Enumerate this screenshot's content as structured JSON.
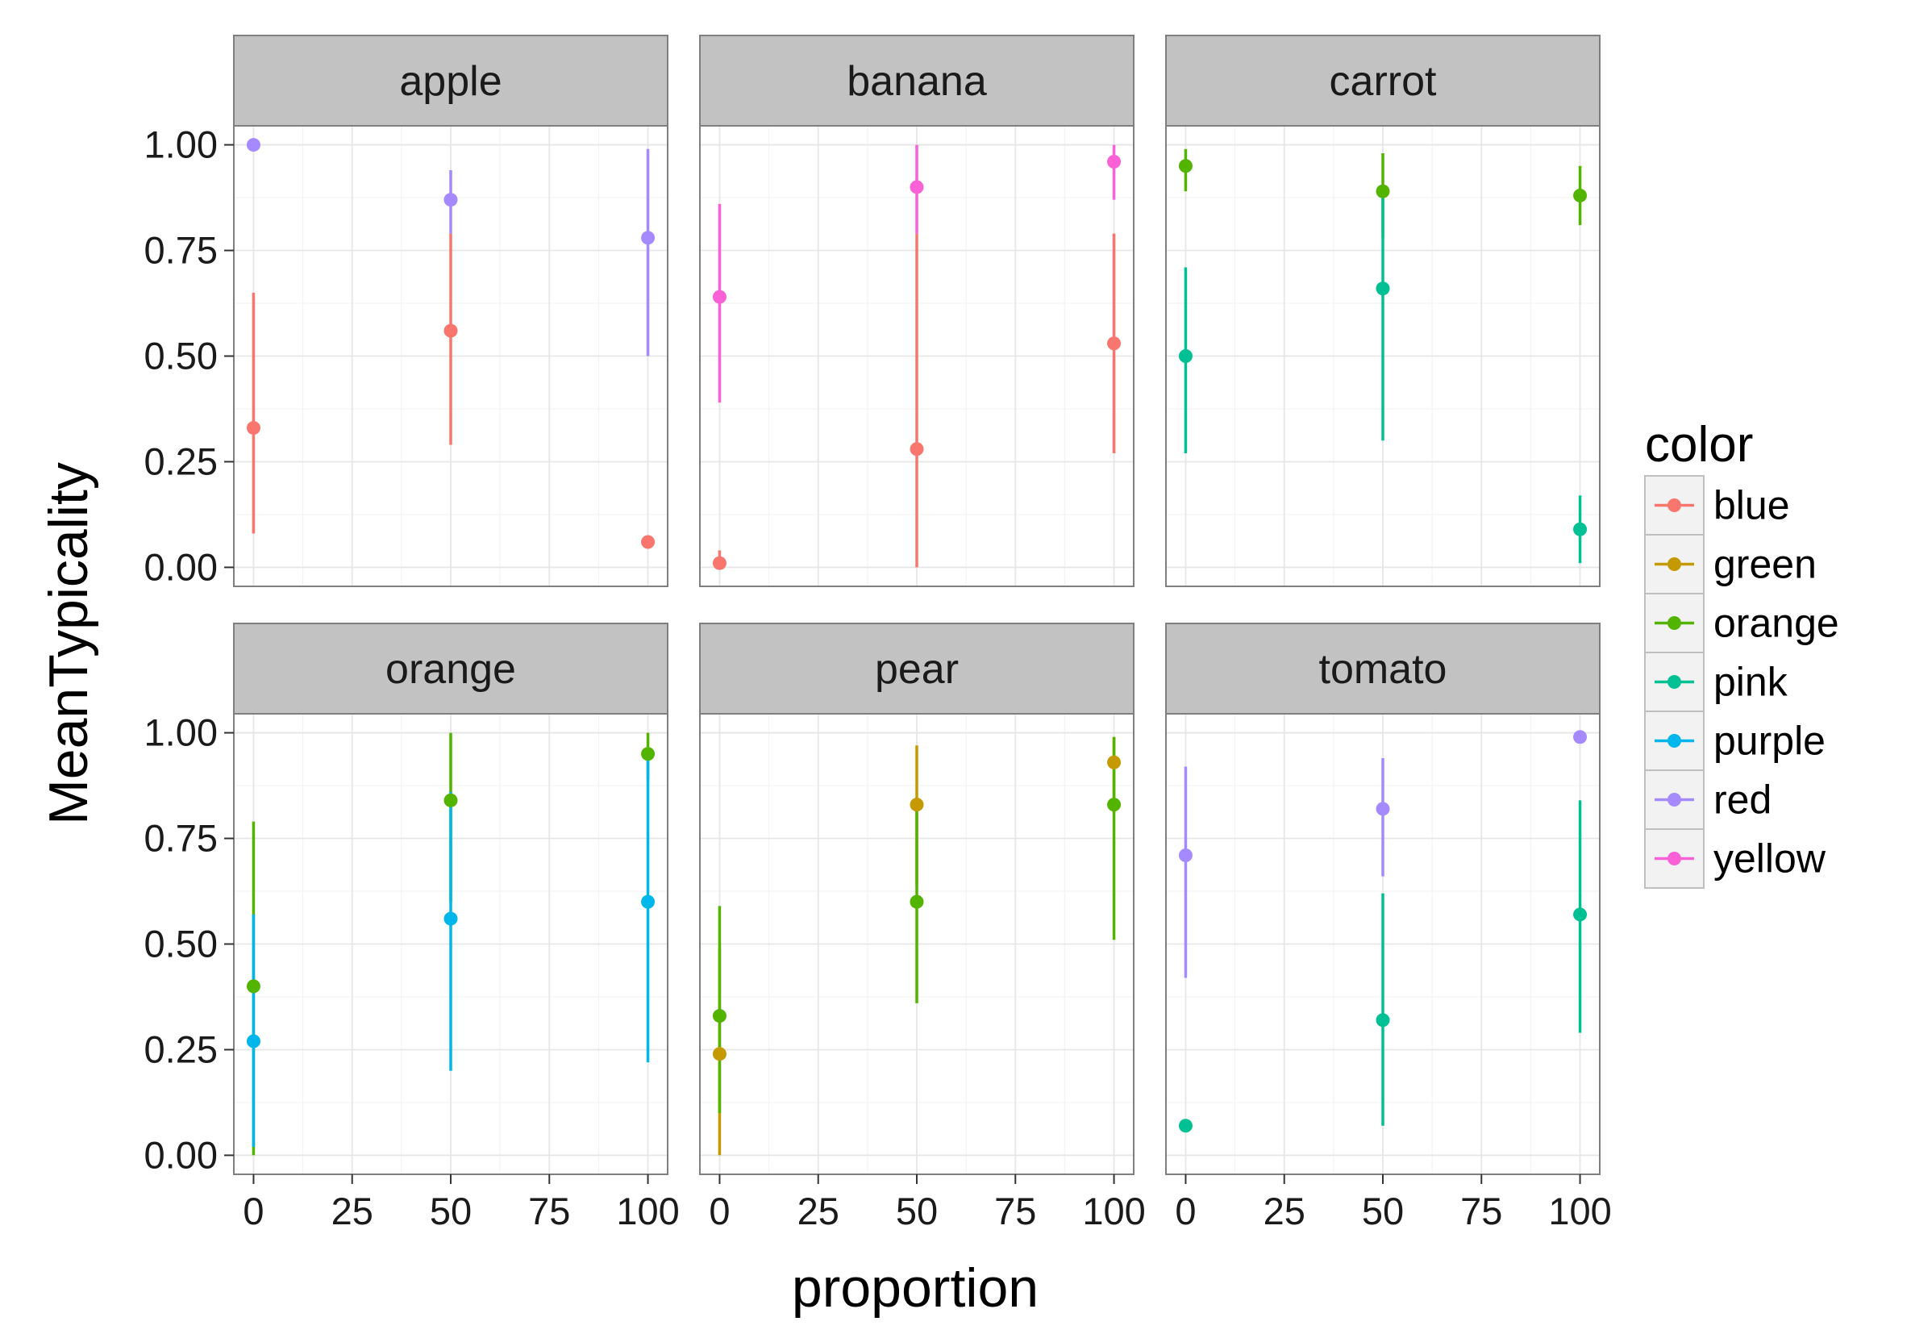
{
  "chart_data": {
    "type": "scatter",
    "subtype": "point-range faceted",
    "xlabel": "proportion",
    "ylabel": "MeanTypicality",
    "xlim": [
      -5,
      105
    ],
    "ylim": [
      -0.045,
      1.045
    ],
    "x_ticks": [
      0,
      25,
      50,
      75,
      100
    ],
    "y_ticks": [
      0.0,
      0.25,
      0.5,
      0.75,
      1.0
    ],
    "x_tick_labels": [
      "0",
      "25",
      "50",
      "75",
      "100"
    ],
    "y_tick_labels": [
      "0.00",
      "0.25",
      "0.50",
      "0.75",
      "1.00"
    ],
    "grid": true,
    "legend": {
      "title": "color",
      "placement": "right",
      "entries": [
        {
          "name": "blue",
          "color": "#F8766D"
        },
        {
          "name": "green",
          "color": "#C49A00"
        },
        {
          "name": "orange",
          "color": "#53B400"
        },
        {
          "name": "pink",
          "color": "#00C094"
        },
        {
          "name": "purple",
          "color": "#00B6EB"
        },
        {
          "name": "red",
          "color": "#A58AFF"
        },
        {
          "name": "yellow",
          "color": "#FB61D7"
        }
      ]
    },
    "facets": [
      {
        "name": "apple",
        "points": [
          {
            "color": "blue",
            "x": 0,
            "y": 0.33,
            "ymin": 0.08,
            "ymax": 0.65
          },
          {
            "color": "red",
            "x": 0,
            "y": 1.0,
            "ymin": 1.0,
            "ymax": 1.0
          },
          {
            "color": "blue",
            "x": 50,
            "y": 0.56,
            "ymin": 0.29,
            "ymax": 0.79
          },
          {
            "color": "red",
            "x": 50,
            "y": 0.87,
            "ymin": 0.79,
            "ymax": 0.94
          },
          {
            "color": "blue",
            "x": 100,
            "y": 0.06,
            "ymin": 0.06,
            "ymax": 0.06
          },
          {
            "color": "red",
            "x": 100,
            "y": 0.78,
            "ymin": 0.5,
            "ymax": 0.99
          }
        ]
      },
      {
        "name": "banana",
        "points": [
          {
            "color": "blue",
            "x": 0,
            "y": 0.01,
            "ymin": 0.0,
            "ymax": 0.04
          },
          {
            "color": "yellow",
            "x": 0,
            "y": 0.64,
            "ymin": 0.39,
            "ymax": 0.86
          },
          {
            "color": "blue",
            "x": 50,
            "y": 0.28,
            "ymin": 0.0,
            "ymax": 0.79
          },
          {
            "color": "yellow",
            "x": 50,
            "y": 0.9,
            "ymin": 0.79,
            "ymax": 1.0
          },
          {
            "color": "blue",
            "x": 100,
            "y": 0.53,
            "ymin": 0.27,
            "ymax": 0.79
          },
          {
            "color": "yellow",
            "x": 100,
            "y": 0.96,
            "ymin": 0.87,
            "ymax": 1.0
          }
        ]
      },
      {
        "name": "carrot",
        "points": [
          {
            "color": "orange",
            "x": 0,
            "y": 0.95,
            "ymin": 0.89,
            "ymax": 0.99
          },
          {
            "color": "pink",
            "x": 0,
            "y": 0.5,
            "ymin": 0.27,
            "ymax": 0.71
          },
          {
            "color": "orange",
            "x": 50,
            "y": 0.89,
            "ymin": 0.78,
            "ymax": 0.98
          },
          {
            "color": "pink",
            "x": 50,
            "y": 0.66,
            "ymin": 0.3,
            "ymax": 0.88
          },
          {
            "color": "orange",
            "x": 100,
            "y": 0.88,
            "ymin": 0.81,
            "ymax": 0.95
          },
          {
            "color": "pink",
            "x": 100,
            "y": 0.09,
            "ymin": 0.01,
            "ymax": 0.17
          }
        ]
      },
      {
        "name": "orange",
        "points": [
          {
            "color": "orange",
            "x": 0,
            "y": 0.4,
            "ymin": 0.0,
            "ymax": 0.79
          },
          {
            "color": "purple",
            "x": 0,
            "y": 0.27,
            "ymin": 0.02,
            "ymax": 0.57
          },
          {
            "color": "orange",
            "x": 50,
            "y": 0.84,
            "ymin": 0.6,
            "ymax": 1.0
          },
          {
            "color": "purple",
            "x": 50,
            "y": 0.56,
            "ymin": 0.2,
            "ymax": 0.86
          },
          {
            "color": "orange",
            "x": 100,
            "y": 0.95,
            "ymin": 0.89,
            "ymax": 1.0
          },
          {
            "color": "purple",
            "x": 100,
            "y": 0.6,
            "ymin": 0.22,
            "ymax": 0.95
          }
        ]
      },
      {
        "name": "pear",
        "points": [
          {
            "color": "green",
            "x": 0,
            "y": 0.24,
            "ymin": 0.0,
            "ymax": 0.49
          },
          {
            "color": "orange",
            "x": 0,
            "y": 0.33,
            "ymin": 0.1,
            "ymax": 0.59
          },
          {
            "color": "green",
            "x": 50,
            "y": 0.83,
            "ymin": 0.64,
            "ymax": 0.97
          },
          {
            "color": "orange",
            "x": 50,
            "y": 0.6,
            "ymin": 0.36,
            "ymax": 0.83
          },
          {
            "color": "green",
            "x": 100,
            "y": 0.93,
            "ymin": 0.81,
            "ymax": 0.99
          },
          {
            "color": "orange",
            "x": 100,
            "y": 0.83,
            "ymin": 0.51,
            "ymax": 0.99
          }
        ]
      },
      {
        "name": "tomato",
        "points": [
          {
            "color": "pink",
            "x": 0,
            "y": 0.07,
            "ymin": 0.07,
            "ymax": 0.07
          },
          {
            "color": "red",
            "x": 0,
            "y": 0.71,
            "ymin": 0.42,
            "ymax": 0.92
          },
          {
            "color": "pink",
            "x": 50,
            "y": 0.32,
            "ymin": 0.07,
            "ymax": 0.62
          },
          {
            "color": "red",
            "x": 50,
            "y": 0.82,
            "ymin": 0.66,
            "ymax": 0.94
          },
          {
            "color": "red",
            "x": 100,
            "y": 0.99,
            "ymin": 0.99,
            "ymax": 0.99
          },
          {
            "color": "pink",
            "x": 100,
            "y": 0.57,
            "ymin": 0.29,
            "ymax": 0.84
          }
        ]
      }
    ]
  },
  "theme": {
    "panel_background": "#FFFFFF",
    "panel_border": "#7F7F7F",
    "grid_major": "#E6E6E6",
    "grid_minor": "#F3F3F3",
    "strip_background": "#C2C2C2",
    "legend_key_border": "#BFBFBF"
  }
}
